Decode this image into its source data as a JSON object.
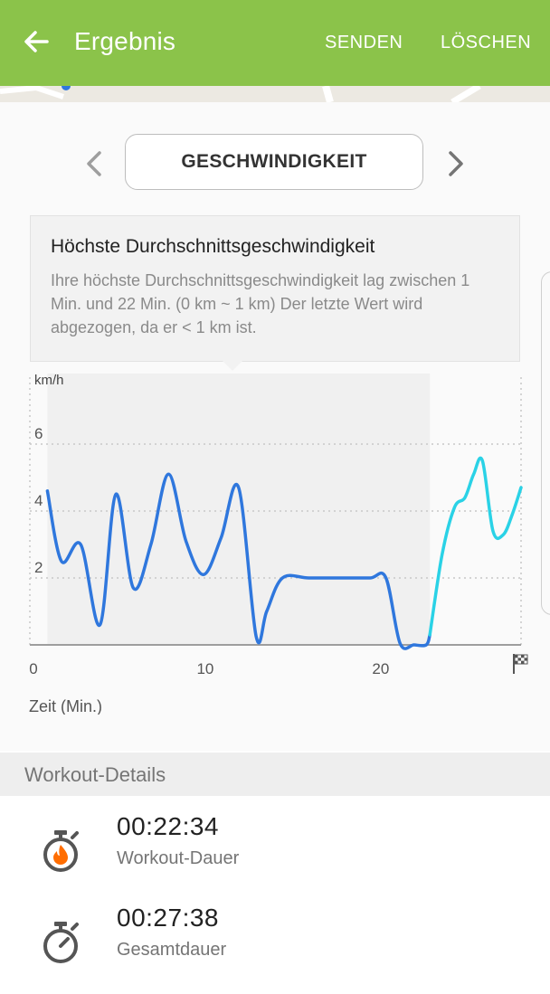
{
  "appbar": {
    "title": "Ergebnis",
    "send_label": "SENDEN",
    "delete_label": "LÖSCHEN",
    "color": "#8bc34a"
  },
  "metric_selector": {
    "label": "GESCHWINDIGKEIT"
  },
  "info": {
    "title": "Höchste Durchschnittsgeschwindigkeit",
    "text": "Ihre höchste Durchschnittsgeschwindigkeit lag zwischen 1 Min. und 22 Min. (0 km ~ 1 km) Der letzte Wert wird abgezogen, da er < 1 km ist."
  },
  "chart_data": {
    "type": "line",
    "ylabel": "km/h",
    "xlabel": "Zeit (Min.)",
    "xlim": [
      0,
      28
    ],
    "ylim": [
      0,
      8
    ],
    "x_ticks": [
      "0",
      "10",
      "20"
    ],
    "y_ticks": [
      "2",
      "4",
      "6"
    ],
    "highlight_range": [
      1,
      22.8
    ],
    "grid": "dotted horizontal",
    "finish_icon": "checkered-flag-icon",
    "series": [
      {
        "color": "#2f77dd",
        "x": [
          1,
          1.8,
          2.9,
          4,
          4.9,
          5.9,
          6.9,
          7.9,
          8.9,
          9.9,
          10.9,
          11.9,
          12.9,
          13.5,
          14.4,
          15.9,
          17.9,
          19.4,
          20.3,
          21.1,
          21.9,
          22.6,
          22.8
        ],
        "y": [
          4.6,
          2.5,
          3,
          0.6,
          4.5,
          1.7,
          3,
          5.1,
          3.1,
          2.1,
          3.2,
          4.7,
          0.25,
          1,
          2,
          2,
          2,
          2,
          2,
          0.05,
          0,
          0,
          0.3
        ]
      },
      {
        "color": "#2ad2e6",
        "x": [
          22.8,
          23.5,
          24.2,
          24.8,
          25.3,
          25.8,
          26.4,
          27,
          27.5,
          28
        ],
        "y": [
          0.3,
          2.7,
          4.1,
          4.4,
          5.1,
          5.5,
          3.4,
          3.3,
          3.9,
          4.7
        ]
      }
    ]
  },
  "workout_details": {
    "header": "Workout-Details",
    "items": [
      {
        "value": "00:22:34",
        "label": "Workout-Dauer",
        "icon": "stopwatch-flame-icon"
      },
      {
        "value": "00:27:38",
        "label": "Gesamtdauer",
        "icon": "stopwatch-icon"
      }
    ]
  }
}
